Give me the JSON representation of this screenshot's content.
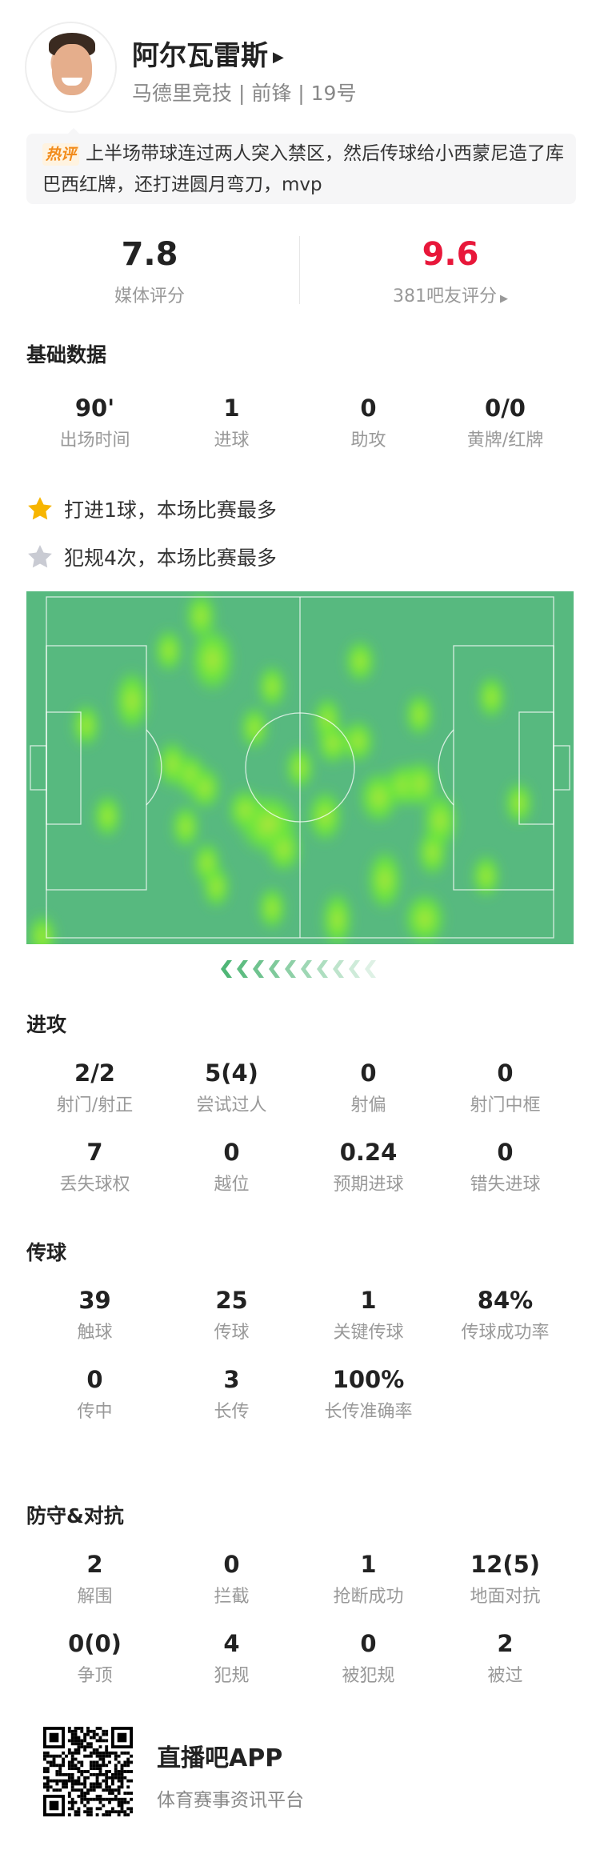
{
  "player": {
    "name": "阿尔瓦雷斯",
    "subtitle": "马德里竞技 | 前锋 | 19号",
    "comment_tag": "热评",
    "comment": "上半场带球连过两人突入禁区，然后传球给小西蒙尼造了库巴西红牌，还打进圆月弯刀，mvp"
  },
  "ratings": {
    "media": {
      "value": "7.8",
      "label": "媒体评分"
    },
    "fans": {
      "value": "9.6",
      "label": "381吧友评分",
      "color": "#e8173a"
    }
  },
  "basic": {
    "title": "基础数据",
    "stats": [
      {
        "value": "90'",
        "label": "出场时间"
      },
      {
        "value": "1",
        "label": "进球"
      },
      {
        "value": "0",
        "label": "助攻"
      },
      {
        "value": "0/0",
        "label": "黄牌/红牌"
      }
    ]
  },
  "highlights": [
    {
      "icon": "gold-star-icon",
      "text": "打进1球，本场比赛最多",
      "color": "#f7b500"
    },
    {
      "icon": "silver-star-icon",
      "text": "犯规4次，本场比赛最多",
      "color": "#c9cbd3"
    }
  ],
  "heatmap": {
    "pitch_color": "#57b97f",
    "heat_color": "#6ae83a"
  },
  "attack": {
    "title": "进攻",
    "stats": [
      {
        "value": "2/2",
        "label": "射门/射正"
      },
      {
        "value": "5(4)",
        "label": "尝试过人"
      },
      {
        "value": "0",
        "label": "射偏"
      },
      {
        "value": "0",
        "label": "射门中框"
      },
      {
        "value": "7",
        "label": "丢失球权"
      },
      {
        "value": "0",
        "label": "越位"
      },
      {
        "value": "0.24",
        "label": "预期进球"
      },
      {
        "value": "0",
        "label": "错失进球"
      }
    ]
  },
  "passing": {
    "title": "传球",
    "stats": [
      {
        "value": "39",
        "label": "触球"
      },
      {
        "value": "25",
        "label": "传球"
      },
      {
        "value": "1",
        "label": "关键传球"
      },
      {
        "value": "84%",
        "label": "传球成功率"
      },
      {
        "value": "0",
        "label": "传中"
      },
      {
        "value": "3",
        "label": "长传"
      },
      {
        "value": "100%",
        "label": "长传准确率"
      }
    ]
  },
  "defense": {
    "title": "防守&对抗",
    "stats": [
      {
        "value": "2",
        "label": "解围"
      },
      {
        "value": "0",
        "label": "拦截"
      },
      {
        "value": "1",
        "label": "抢断成功"
      },
      {
        "value": "12(5)",
        "label": "地面对抗"
      },
      {
        "value": "0(0)",
        "label": "争顶"
      },
      {
        "value": "4",
        "label": "犯规"
      },
      {
        "value": "0",
        "label": "被犯规"
      },
      {
        "value": "2",
        "label": "被过"
      }
    ]
  },
  "footer": {
    "app_name": "直播吧APP",
    "tagline": "体育赛事资讯平台"
  }
}
